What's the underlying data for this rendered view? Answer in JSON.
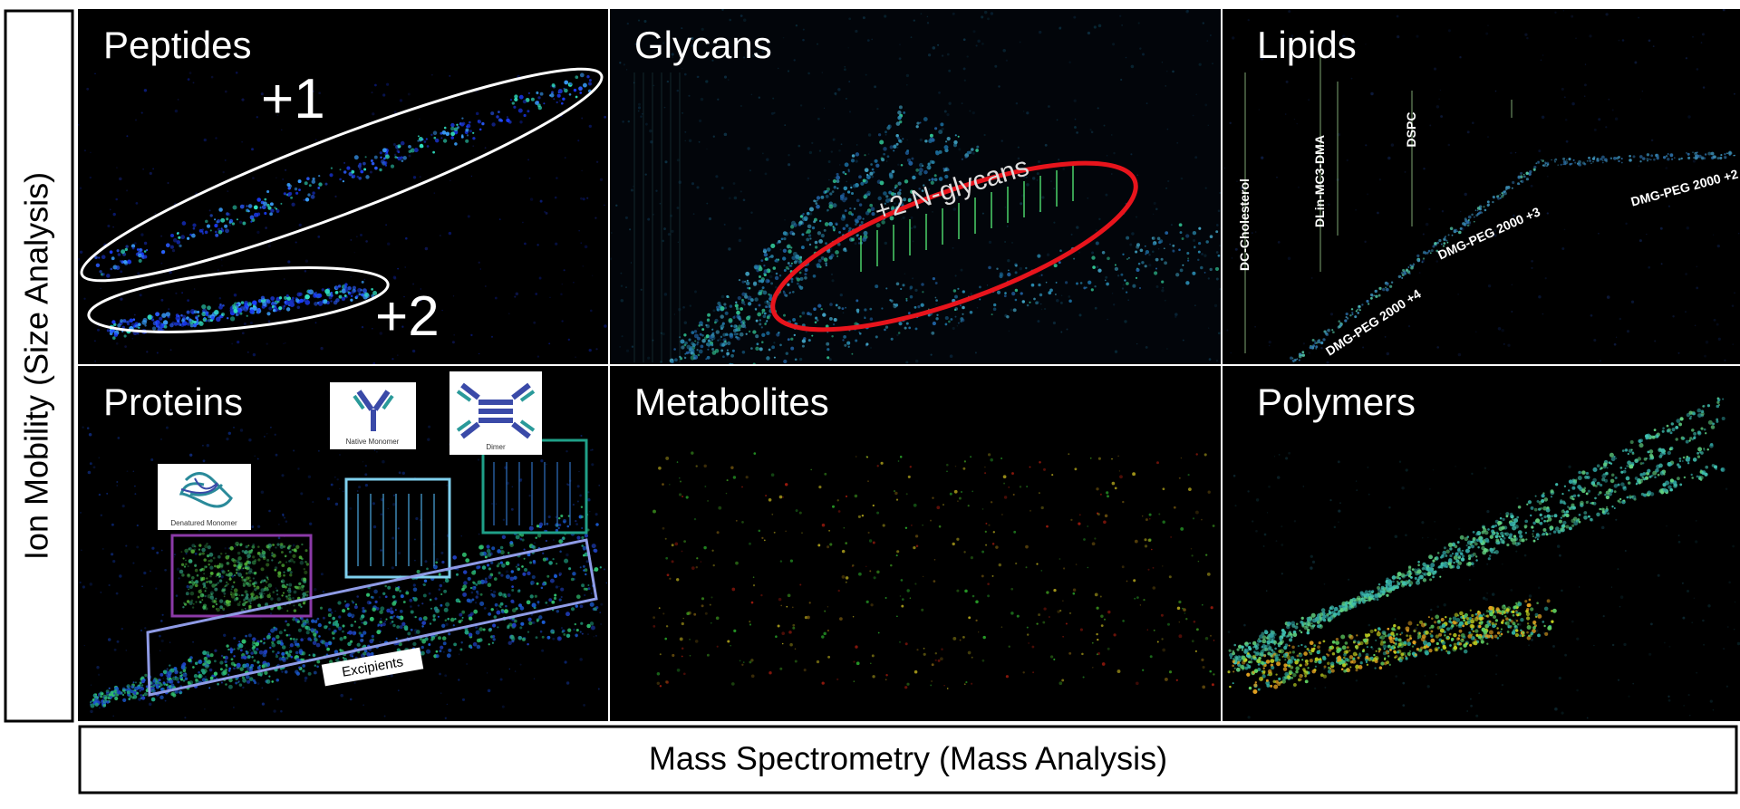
{
  "y_axis_label": "Ion Mobility (Size Analysis)",
  "x_axis_label": "Mass Spectrometry (Mass Analysis)",
  "panels": [
    {
      "title": "Peptides",
      "annotations": [
        "+1",
        "+2"
      ]
    },
    {
      "title": "Glycans",
      "annotations": [
        "+2 N-glycans"
      ]
    },
    {
      "title": "Lipids",
      "annotations": [
        "DC-Cholesterol",
        "DLin-MC3-DMA",
        "DSPC",
        "DMG-PEG 2000 +4",
        "DMG-PEG 2000 +3",
        "DMG-PEG 2000 +2"
      ]
    },
    {
      "title": "Proteins",
      "annotations": [
        "Denatured Monomer",
        "Native Monomer",
        "Dimer",
        "Excipients"
      ]
    },
    {
      "title": "Metabolites",
      "annotations": []
    },
    {
      "title": "Polymers",
      "annotations": []
    }
  ]
}
